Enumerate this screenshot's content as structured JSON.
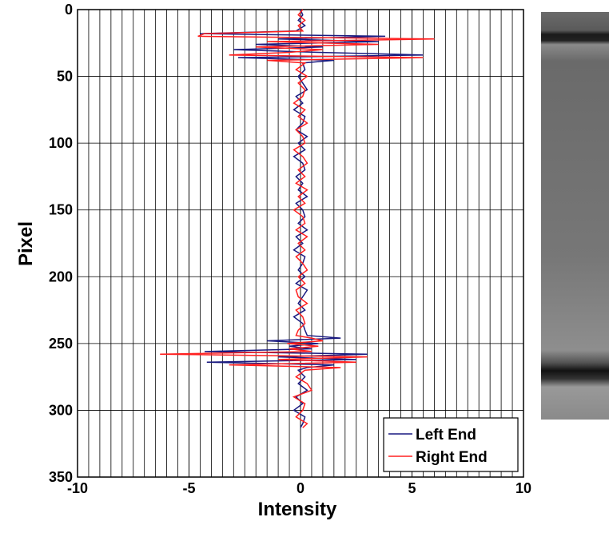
{
  "chart_data": {
    "type": "line",
    "xlabel": "Intensity",
    "ylabel": "Pixel",
    "xlim": [
      -10,
      10
    ],
    "xticks": [
      -10,
      -5,
      0,
      5,
      10
    ],
    "ylim": [
      0,
      350
    ],
    "yticks": [
      0,
      50,
      100,
      150,
      200,
      250,
      300,
      350
    ],
    "y_inverted": true,
    "grid": true,
    "minor_xgrid": true,
    "legend": "lower right",
    "y": [
      0,
      4,
      8,
      12,
      16,
      18,
      20,
      22,
      24,
      26,
      28,
      30,
      32,
      34,
      36,
      38,
      40,
      45,
      50,
      55,
      60,
      65,
      70,
      75,
      80,
      85,
      90,
      95,
      100,
      105,
      110,
      115,
      120,
      125,
      130,
      135,
      140,
      145,
      150,
      155,
      160,
      165,
      170,
      175,
      180,
      185,
      190,
      195,
      200,
      205,
      210,
      215,
      220,
      225,
      230,
      235,
      240,
      244,
      246,
      248,
      250,
      252,
      254,
      256,
      258,
      260,
      262,
      264,
      266,
      268,
      270,
      275,
      280,
      285,
      290,
      295,
      300,
      305,
      310,
      313
    ],
    "series": [
      {
        "name": "Left End",
        "color": "#1a1a80",
        "values": [
          0,
          0.1,
          -0.1,
          0.2,
          -0.2,
          -4.5,
          3.8,
          -1.0,
          3.5,
          -2.0,
          1.0,
          -3.0,
          0.8,
          5.5,
          -2.8,
          1.5,
          0.1,
          0.2,
          -0.1,
          0.1,
          0.3,
          -0.2,
          0.1,
          -0.3,
          0.2,
          0.1,
          -0.2,
          0.3,
          -0.1,
          0.2,
          -0.3,
          0.1,
          0.2,
          -0.2,
          0.1,
          -0.1,
          0.3,
          -0.2,
          0.1,
          0.2,
          -0.1,
          0.3,
          -0.2,
          0.1,
          -0.3,
          0.2,
          0.1,
          -0.1,
          0.2,
          -0.2,
          0.3,
          0.1,
          -0.1,
          0.2,
          -0.3,
          0.1,
          0.2,
          0.3,
          1.8,
          -1.5,
          0.8,
          -0.5,
          0.5,
          -4.3,
          3.0,
          -1.0,
          2.5,
          -4.2,
          1.5,
          0.3,
          -0.1,
          0.2,
          -0.1,
          0.3,
          -0.2,
          0.1,
          -0.3,
          0.2,
          0.1,
          0
        ]
      },
      {
        "name": "Right End",
        "color": "#ff2020",
        "values": [
          0.1,
          -0.1,
          0.2,
          -0.1,
          0.1,
          -4.3,
          -4.6,
          6.0,
          -1.5,
          3.5,
          -2.0,
          1.0,
          -0.5,
          -3.2,
          5.5,
          -1.5,
          0.2,
          -0.2,
          0.3,
          -0.1,
          0.2,
          0.1,
          -0.3,
          0.2,
          -0.1,
          0.3,
          -0.2,
          0.1,
          0.2,
          -0.3,
          0.1,
          0.3,
          -0.1,
          0.2,
          -0.2,
          0.3,
          -0.1,
          0.2,
          -0.3,
          0.1,
          0.2,
          -0.2,
          0.3,
          -0.1,
          0.2,
          -0.2,
          0.1,
          0.3,
          -0.1,
          0.2,
          -0.2,
          -0.1,
          0.3,
          -0.2,
          0.1,
          0.2,
          -0.1,
          -0.2,
          0.5,
          1.0,
          -0.6,
          0.8,
          -0.5,
          0.5,
          -6.3,
          3.0,
          -1.0,
          2.5,
          -3.2,
          1.8,
          0.2,
          -0.2,
          0.3,
          0.5,
          -0.3,
          0.2,
          0.1,
          -0.2,
          0.3,
          0.1
        ]
      }
    ]
  }
}
